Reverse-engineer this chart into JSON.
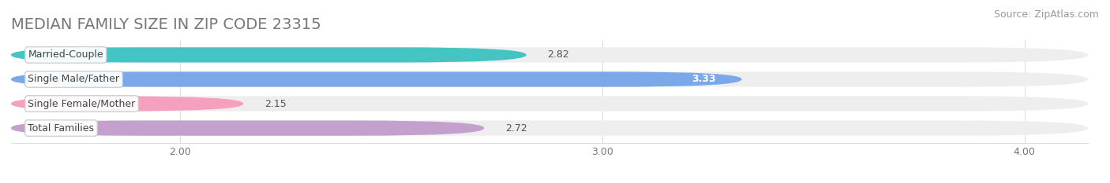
{
  "title": "MEDIAN FAMILY SIZE IN ZIP CODE 23315",
  "source": "Source: ZipAtlas.com",
  "categories": [
    "Married-Couple",
    "Single Male/Father",
    "Single Female/Mother",
    "Total Families"
  ],
  "values": [
    2.82,
    3.33,
    2.15,
    2.72
  ],
  "bar_colors": [
    "#45c4c4",
    "#7aa8e8",
    "#f5a0be",
    "#c4a0cc"
  ],
  "value_white": [
    false,
    true,
    false,
    false
  ],
  "xlim_data": [
    1.6,
    4.15
  ],
  "xmin": 1.6,
  "xmax": 4.15,
  "xticks": [
    2.0,
    3.0,
    4.0
  ],
  "xtick_labels": [
    "2.00",
    "3.00",
    "4.00"
  ],
  "bar_height": 0.62,
  "background_color": "#ffffff",
  "bar_bg_color": "#eeeeee",
  "title_fontsize": 14,
  "source_fontsize": 9,
  "label_fontsize": 9,
  "value_fontsize": 9,
  "bar_rounding": 0.3
}
